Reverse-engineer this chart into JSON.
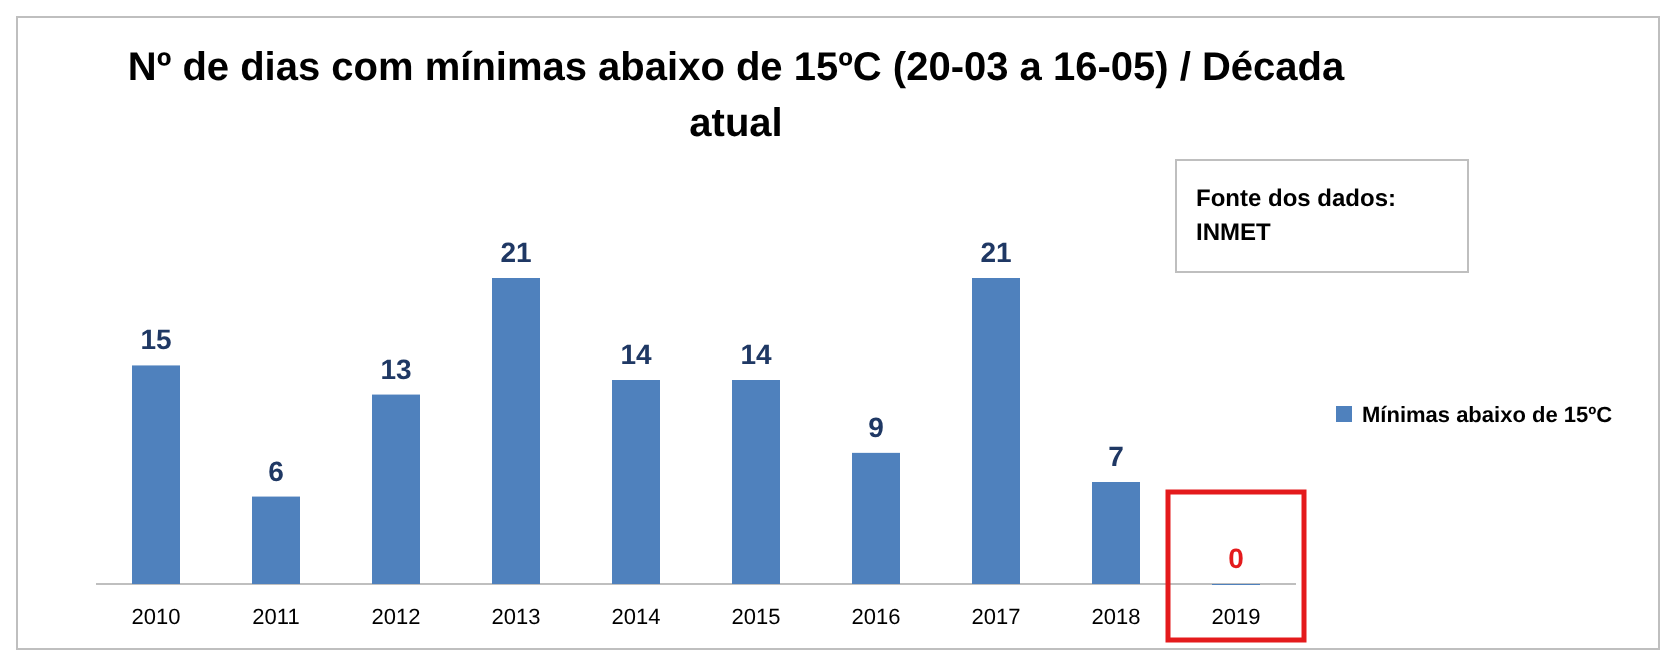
{
  "chart_data": {
    "type": "bar",
    "title": "Nº de dias com mínimas abaixo de 15ºC (20-03 a 16-05) / Década atual",
    "categories": [
      "2010",
      "2011",
      "2012",
      "2013",
      "2014",
      "2015",
      "2016",
      "2017",
      "2018",
      "2019"
    ],
    "series": [
      {
        "name": "Mínimas abaixo de 15ºC",
        "color": "#4f81bd",
        "values": [
          15,
          6,
          13,
          21,
          14,
          14,
          9,
          21,
          7,
          0
        ]
      }
    ],
    "data_labels": true,
    "legend": "right",
    "annotations": [
      "Fonte dos dados:\nINMET"
    ]
  }
}
